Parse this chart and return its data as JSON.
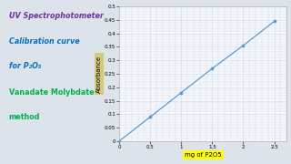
{
  "x_data": [
    0,
    0.5,
    1.0,
    1.5,
    2.0,
    2.5
  ],
  "y_data": [
    0,
    0.09,
    0.18,
    0.27,
    0.355,
    0.445
  ],
  "line_color": "#5b9bd5",
  "marker_color": "#5b9bd5",
  "xlabel": "mg of P2O5",
  "ylabel": "Absorbance",
  "xlim": [
    0,
    2.7
  ],
  "ylim": [
    0,
    0.5
  ],
  "xticks": [
    0,
    0.5,
    1.0,
    1.5,
    2.0,
    2.5
  ],
  "yticks": [
    0,
    0.05,
    0.1,
    0.15,
    0.2,
    0.25,
    0.3,
    0.35,
    0.4,
    0.45,
    0.5
  ],
  "grid_color": "#c8d8e8",
  "plot_bg": "#f7f8fb",
  "fig_bg": "#dce3ea",
  "title_line1": "UV Spectrophotometer",
  "title_line2": "Calibration curve",
  "title_line3": "for P₂O₅",
  "title_line4": "Vanadate Molybdate",
  "title_line5": "method",
  "title_color1": "#7030a0",
  "title_color2": "#0070c0",
  "title_color3": "#00b050",
  "xlabel_bg": "#ffff00",
  "ylabel_bg": "#d4c87a"
}
